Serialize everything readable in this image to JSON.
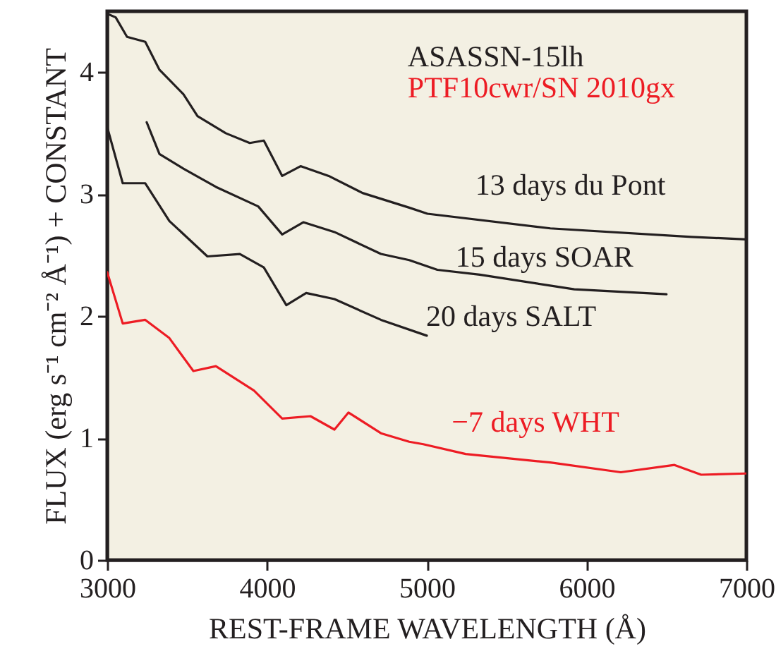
{
  "chart_data": {
    "type": "line",
    "xlabel": "REST-FRAME WAVELENGTH (Å)",
    "ylabel": "FLUX (erg s⁻¹ cm⁻² Å⁻¹) + CONSTANT",
    "annotations": [
      "ASASSN-15lh",
      "PTF10cwr/SN 2010gx"
    ],
    "xlim": [
      3000,
      7000
    ],
    "xticks": [
      3000,
      4000,
      5000,
      6000,
      7000
    ],
    "ylim": [
      0,
      4.5
    ],
    "yticks": [
      0,
      1,
      2,
      3,
      4
    ],
    "grid": false,
    "marker": "none",
    "line_style": "solid",
    "series": [
      {
        "name": "13 days du Pont",
        "color": "#231f20",
        "x": [
          3000,
          3053,
          3124,
          3238,
          3327,
          3477,
          3565,
          3742,
          3892,
          3980,
          4095,
          4210,
          4386,
          4598,
          4890,
          5004,
          5773,
          6656,
          7000
        ],
        "values": [
          4.48,
          4.45,
          4.29,
          4.25,
          4.02,
          3.82,
          3.64,
          3.5,
          3.42,
          3.44,
          3.15,
          3.23,
          3.15,
          3.01,
          2.89,
          2.84,
          2.72,
          2.65,
          2.63
        ]
      },
      {
        "name": "15 days SOAR",
        "color": "#231f20",
        "x": [
          3247,
          3327,
          3477,
          3680,
          3945,
          4095,
          4227,
          4422,
          4713,
          4890,
          5066,
          5331,
          5923,
          6500
        ],
        "values": [
          3.59,
          3.33,
          3.21,
          3.06,
          2.9,
          2.67,
          2.77,
          2.69,
          2.51,
          2.46,
          2.38,
          2.34,
          2.22,
          2.18
        ]
      },
      {
        "name": "20 days SALT",
        "color": "#231f20",
        "x": [
          3000,
          3097,
          3238,
          3389,
          3627,
          3830,
          3980,
          4121,
          4245,
          4422,
          4713,
          5000
        ],
        "values": [
          3.55,
          3.09,
          3.09,
          2.78,
          2.49,
          2.51,
          2.4,
          2.09,
          2.19,
          2.14,
          1.97,
          1.84
        ]
      },
      {
        "name": "−7 days WHT",
        "color": "#ed1c24",
        "x": [
          3000,
          3097,
          3238,
          3389,
          3539,
          3680,
          3918,
          4095,
          4272,
          4422,
          4510,
          4713,
          4890,
          4978,
          5243,
          5773,
          6214,
          6550,
          6717,
          7000
        ],
        "values": [
          2.36,
          1.94,
          1.97,
          1.82,
          1.55,
          1.59,
          1.39,
          1.16,
          1.18,
          1.07,
          1.21,
          1.04,
          0.97,
          0.95,
          0.87,
          0.8,
          0.72,
          0.78,
          0.7,
          0.71
        ]
      }
    ]
  }
}
